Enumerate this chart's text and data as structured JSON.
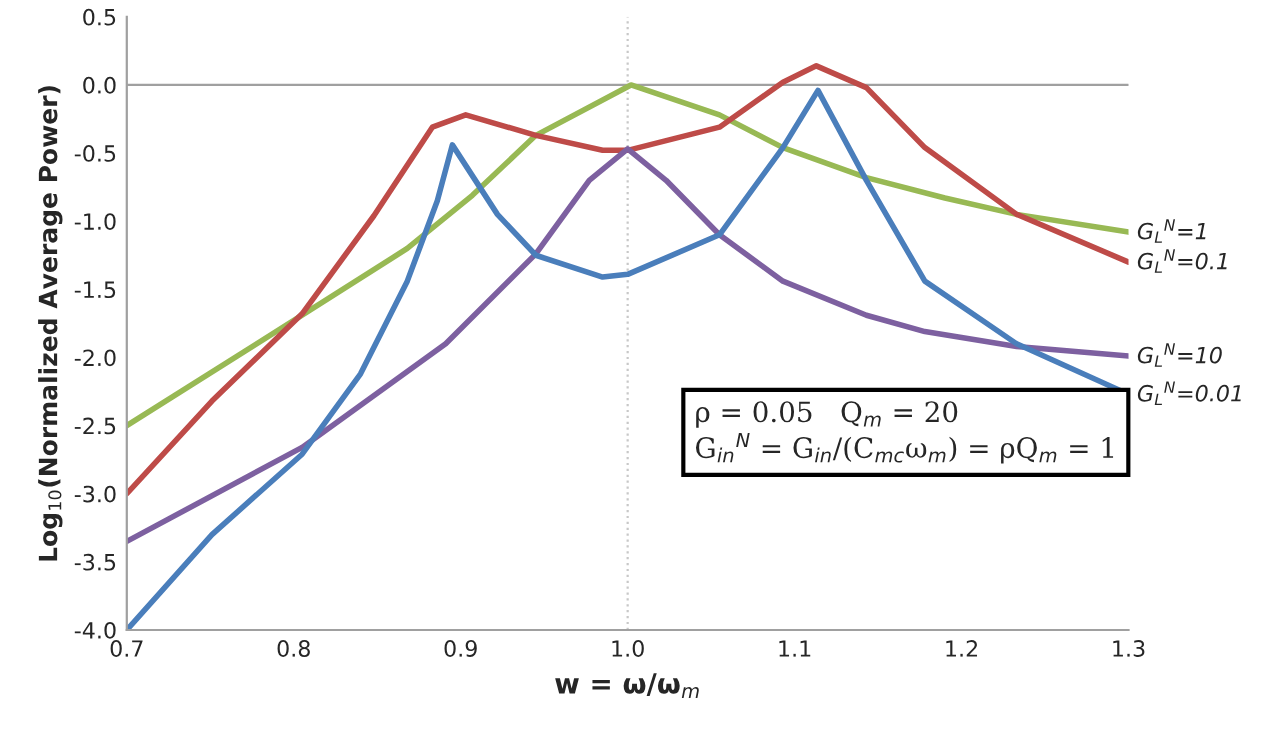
{
  "chart_data": {
    "type": "line",
    "xlabel": "w = ω/ω$_{m}$",
    "ylabel": "Log$_{10}$(Normalized Average Power)",
    "xlim": [
      0.7,
      1.3
    ],
    "ylim": [
      -4.0,
      0.5
    ],
    "xticks": [
      {
        "value": 0.7,
        "label": "0.7"
      },
      {
        "value": 0.8,
        "label": "0.8"
      },
      {
        "value": 0.9,
        "label": "0.9"
      },
      {
        "value": 1.0,
        "label": "1.0"
      },
      {
        "value": 1.1,
        "label": "1.1"
      },
      {
        "value": 1.2,
        "label": "1.2"
      },
      {
        "value": 1.3,
        "label": "1.3"
      }
    ],
    "yticks": [
      {
        "value": 0.5,
        "label": "0.5"
      },
      {
        "value": 0.0,
        "label": "0.0"
      },
      {
        "value": -0.5,
        "label": "-0.5"
      },
      {
        "value": -1.0,
        "label": "-1.0"
      },
      {
        "value": -1.5,
        "label": "-1.5"
      },
      {
        "value": -2.0,
        "label": "-2.0"
      },
      {
        "value": -2.5,
        "label": "-2.5"
      },
      {
        "value": -3.0,
        "label": "-3.0"
      },
      {
        "value": -3.5,
        "label": "-3.5"
      },
      {
        "value": -4.0,
        "label": "-4.0"
      }
    ],
    "grid": false,
    "legend": false,
    "marker": "none",
    "line_style": "solid",
    "ref_lines": [
      {
        "axis": "y",
        "value": 0.0,
        "color": "#a0a0a0",
        "line_style": "solid"
      },
      {
        "axis": "x",
        "value": 1.0,
        "color": "#c8c8c8",
        "line_style": "dotted"
      }
    ],
    "annotations": [
      "ρ = 0.05   Q$_{m}$ = 20",
      "G$_{in}$$^{N}$ = G$_{in}$/(C$_{mc}$ω$_{m}$) = ρQ$_{m}$ = 1"
    ],
    "series": [
      {
        "name": "G$_{L}$$^{N}$=1",
        "color": "#98b954",
        "x": [
          0.7,
          0.805,
          0.868,
          0.907,
          0.945,
          1.002,
          1.055,
          1.093,
          1.143,
          1.19,
          1.233,
          1.3
        ],
        "values": [
          -2.5,
          -1.69,
          -1.2,
          -0.81,
          -0.37,
          0.0,
          -0.22,
          -0.46,
          -0.68,
          -0.83,
          -0.95,
          -1.08
        ]
      },
      {
        "name": "G$_{L}$$^{N}$=0.1",
        "color": "#be4b48",
        "x": [
          0.7,
          0.751,
          0.805,
          0.848,
          0.883,
          0.903,
          0.945,
          0.985,
          1.0,
          1.055,
          1.093,
          1.113,
          1.143,
          1.178,
          1.233,
          1.3
        ],
        "values": [
          -3.0,
          -2.32,
          -1.68,
          -0.96,
          -0.31,
          -0.22,
          -0.37,
          -0.48,
          -0.48,
          -0.31,
          0.02,
          0.14,
          -0.02,
          -0.46,
          -0.95,
          -1.3
        ]
      },
      {
        "name": "G$_{L}$$^{N}$=10",
        "color": "#7d60a0",
        "x": [
          0.7,
          0.805,
          0.891,
          0.945,
          0.977,
          1.0,
          1.023,
          1.055,
          1.093,
          1.143,
          1.178,
          1.233,
          1.3
        ],
        "values": [
          -3.35,
          -2.66,
          -1.9,
          -1.24,
          -0.7,
          -0.47,
          -0.7,
          -1.1,
          -1.44,
          -1.69,
          -1.81,
          -1.92,
          -1.99
        ]
      },
      {
        "name": "G$_{L}$$^{N}$=0.01",
        "color": "#4a7ebb",
        "x": [
          0.7,
          0.751,
          0.805,
          0.84,
          0.868,
          0.886,
          0.895,
          0.922,
          0.945,
          0.985,
          1.0,
          1.055,
          1.093,
          1.114,
          1.143,
          1.178,
          1.233,
          1.3
        ],
        "values": [
          -4.0,
          -3.3,
          -2.71,
          -2.12,
          -1.44,
          -0.85,
          -0.44,
          -0.95,
          -1.25,
          -1.41,
          -1.39,
          -1.1,
          -0.46,
          -0.04,
          -0.7,
          -1.44,
          -1.9,
          -2.27
        ]
      }
    ]
  }
}
